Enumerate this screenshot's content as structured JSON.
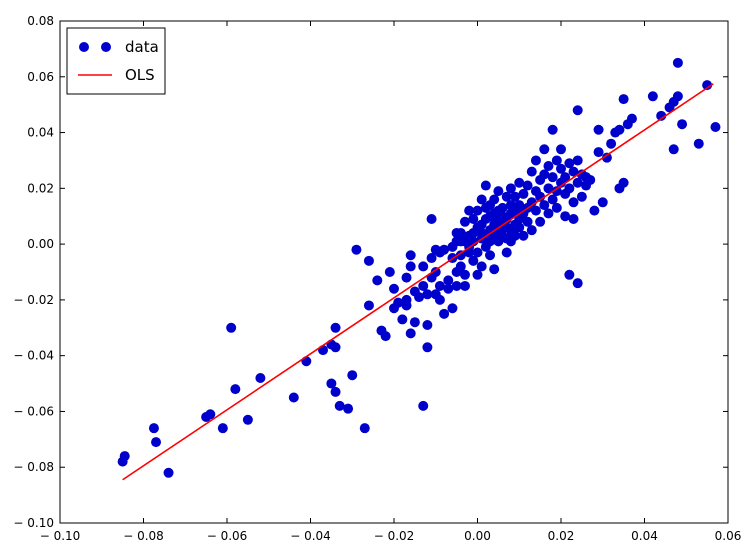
{
  "chart_data": {
    "type": "scatter",
    "title": "",
    "xlabel": "",
    "ylabel": "",
    "xlim": [
      -0.1,
      0.06
    ],
    "ylim": [
      -0.1,
      0.08
    ],
    "x_ticks": [
      "− 0.10",
      "− 0.08",
      "− 0.06",
      "− 0.04",
      "− 0.02",
      "0.00",
      "0.02",
      "0.04",
      "0.06"
    ],
    "y_ticks": [
      "− 0.10",
      "− 0.08",
      "− 0.06",
      "− 0.04",
      "− 0.02",
      "0.00",
      "0.02",
      "0.04",
      "0.06",
      "0.08"
    ],
    "grid": false,
    "legend_position": "top-left",
    "series": [
      {
        "name": "data",
        "kind": "scatter",
        "color": "#0000cc",
        "points": [
          [
            -0.085,
            -0.078
          ],
          [
            -0.0845,
            -0.076
          ],
          [
            -0.0775,
            -0.066
          ],
          [
            -0.077,
            -0.071
          ],
          [
            -0.074,
            -0.082
          ],
          [
            -0.065,
            -0.062
          ],
          [
            -0.064,
            -0.061
          ],
          [
            -0.061,
            -0.066
          ],
          [
            -0.059,
            -0.03
          ],
          [
            -0.058,
            -0.052
          ],
          [
            -0.055,
            -0.063
          ],
          [
            -0.052,
            -0.048
          ],
          [
            -0.044,
            -0.055
          ],
          [
            -0.041,
            -0.042
          ],
          [
            -0.037,
            -0.038
          ],
          [
            -0.035,
            -0.036
          ],
          [
            -0.035,
            -0.05
          ],
          [
            -0.034,
            -0.03
          ],
          [
            -0.034,
            -0.037
          ],
          [
            -0.034,
            -0.053
          ],
          [
            -0.033,
            -0.058
          ],
          [
            -0.031,
            -0.059
          ],
          [
            -0.03,
            -0.047
          ],
          [
            -0.029,
            -0.002
          ],
          [
            -0.027,
            -0.066
          ],
          [
            -0.026,
            -0.022
          ],
          [
            -0.026,
            -0.006
          ],
          [
            -0.024,
            -0.013
          ],
          [
            -0.023,
            -0.031
          ],
          [
            -0.022,
            -0.033
          ],
          [
            -0.021,
            -0.01
          ],
          [
            -0.02,
            -0.016
          ],
          [
            -0.02,
            -0.023
          ],
          [
            -0.019,
            -0.021
          ],
          [
            -0.018,
            -0.027
          ],
          [
            -0.017,
            -0.02
          ],
          [
            -0.017,
            -0.012
          ],
          [
            -0.017,
            -0.022
          ],
          [
            -0.016,
            -0.032
          ],
          [
            -0.016,
            -0.008
          ],
          [
            -0.016,
            -0.004
          ],
          [
            -0.015,
            -0.017
          ],
          [
            -0.015,
            -0.028
          ],
          [
            -0.014,
            -0.019
          ],
          [
            -0.013,
            -0.015
          ],
          [
            -0.013,
            -0.008
          ],
          [
            -0.013,
            -0.058
          ],
          [
            -0.012,
            -0.029
          ],
          [
            -0.012,
            -0.037
          ],
          [
            -0.012,
            -0.018
          ],
          [
            -0.011,
            -0.012
          ],
          [
            -0.011,
            -0.005
          ],
          [
            -0.011,
            0.009
          ],
          [
            -0.01,
            -0.002
          ],
          [
            -0.01,
            -0.01
          ],
          [
            -0.01,
            -0.018
          ],
          [
            -0.009,
            -0.003
          ],
          [
            -0.009,
            -0.015
          ],
          [
            -0.009,
            -0.02
          ],
          [
            -0.008,
            -0.025
          ],
          [
            -0.008,
            -0.002
          ],
          [
            -0.007,
            -0.013
          ],
          [
            -0.007,
            -0.016
          ],
          [
            -0.006,
            -0.023
          ],
          [
            -0.006,
            -0.005
          ],
          [
            -0.006,
            -0.001
          ],
          [
            -0.005,
            0.001
          ],
          [
            -0.005,
            -0.01
          ],
          [
            -0.005,
            0.004
          ],
          [
            -0.005,
            -0.015
          ],
          [
            -0.004,
            0.001
          ],
          [
            -0.004,
            -0.004
          ],
          [
            -0.004,
            0.004
          ],
          [
            -0.004,
            -0.008
          ],
          [
            -0.003,
            0.001
          ],
          [
            -0.003,
            -0.011
          ],
          [
            -0.003,
            0.008
          ],
          [
            -0.003,
            -0.015
          ],
          [
            -0.002,
            -0.001
          ],
          [
            -0.002,
            0.003
          ],
          [
            -0.002,
            0.012
          ],
          [
            -0.002,
            -0.003
          ],
          [
            -0.001,
            0.004
          ],
          [
            -0.001,
            0.009
          ],
          [
            -0.001,
            -0.006
          ],
          [
            -0.001,
            0.001
          ],
          [
            0.0,
            0.006
          ],
          [
            0.0,
            -0.003
          ],
          [
            0.0,
            -0.011
          ],
          [
            0.0,
            0.012
          ],
          [
            0.001,
            0.002
          ],
          [
            0.001,
            0.007
          ],
          [
            0.001,
            -0.008
          ],
          [
            0.001,
            0.004
          ],
          [
            0.001,
            0.016
          ],
          [
            0.002,
            0.003
          ],
          [
            0.002,
            -0.001
          ],
          [
            0.002,
            0.009
          ],
          [
            0.002,
            0.013
          ],
          [
            0.002,
            0.021
          ],
          [
            0.003,
            0.005
          ],
          [
            0.003,
            0.001
          ],
          [
            0.003,
            0.01
          ],
          [
            0.003,
            -0.004
          ],
          [
            0.003,
            0.014
          ],
          [
            0.004,
            0.007
          ],
          [
            0.004,
            0.002
          ],
          [
            0.004,
            0.011
          ],
          [
            0.004,
            0.016
          ],
          [
            0.004,
            -0.009
          ],
          [
            0.005,
            0.004
          ],
          [
            0.005,
            0.009
          ],
          [
            0.005,
            0.012
          ],
          [
            0.005,
            0.001
          ],
          [
            0.005,
            0.019
          ],
          [
            0.006,
            0.006
          ],
          [
            0.006,
            0.003
          ],
          [
            0.006,
            0.01
          ],
          [
            0.006,
            0.013
          ],
          [
            0.006,
            0.008
          ],
          [
            0.007,
            0.009
          ],
          [
            0.007,
            0.002
          ],
          [
            0.007,
            0.017
          ],
          [
            0.007,
            0.006
          ],
          [
            0.007,
            -0.003
          ],
          [
            0.008,
            0.005
          ],
          [
            0.008,
            0.011
          ],
          [
            0.008,
            0.014
          ],
          [
            0.008,
            0.02
          ],
          [
            0.008,
            0.001
          ],
          [
            0.009,
            0.007
          ],
          [
            0.009,
            0.012
          ],
          [
            0.009,
            0.003
          ],
          [
            0.009,
            0.017
          ],
          [
            0.01,
            0.009
          ],
          [
            0.01,
            0.014
          ],
          [
            0.01,
            0.006
          ],
          [
            0.01,
            0.022
          ],
          [
            0.011,
            0.011
          ],
          [
            0.011,
            0.018
          ],
          [
            0.011,
            0.003
          ],
          [
            0.012,
            0.013
          ],
          [
            0.012,
            0.021
          ],
          [
            0.012,
            0.008
          ],
          [
            0.013,
            0.015
          ],
          [
            0.013,
            0.026
          ],
          [
            0.013,
            0.005
          ],
          [
            0.014,
            0.012
          ],
          [
            0.014,
            0.019
          ],
          [
            0.014,
            0.03
          ],
          [
            0.015,
            0.017
          ],
          [
            0.015,
            0.008
          ],
          [
            0.015,
            0.023
          ],
          [
            0.016,
            0.014
          ],
          [
            0.016,
            0.025
          ],
          [
            0.016,
            0.034
          ],
          [
            0.017,
            0.02
          ],
          [
            0.017,
            0.011
          ],
          [
            0.017,
            0.028
          ],
          [
            0.018,
            0.016
          ],
          [
            0.018,
            0.024
          ],
          [
            0.018,
            0.041
          ],
          [
            0.019,
            0.019
          ],
          [
            0.019,
            0.03
          ],
          [
            0.019,
            0.013
          ],
          [
            0.02,
            0.022
          ],
          [
            0.02,
            0.027
          ],
          [
            0.02,
            0.034
          ],
          [
            0.021,
            0.018
          ],
          [
            0.021,
            0.024
          ],
          [
            0.021,
            0.01
          ],
          [
            0.022,
            0.02
          ],
          [
            0.022,
            -0.011
          ],
          [
            0.022,
            0.029
          ],
          [
            0.023,
            0.015
          ],
          [
            0.023,
            0.026
          ],
          [
            0.023,
            0.009
          ],
          [
            0.024,
            0.022
          ],
          [
            0.024,
            0.03
          ],
          [
            0.024,
            -0.014
          ],
          [
            0.024,
            0.048
          ],
          [
            0.025,
            0.017
          ],
          [
            0.025,
            0.025
          ],
          [
            0.026,
            0.021
          ],
          [
            0.026,
            0.024
          ],
          [
            0.027,
            0.023
          ],
          [
            0.028,
            0.012
          ],
          [
            0.029,
            0.033
          ],
          [
            0.029,
            0.041
          ],
          [
            0.03,
            0.015
          ],
          [
            0.031,
            0.031
          ],
          [
            0.032,
            0.036
          ],
          [
            0.033,
            0.04
          ],
          [
            0.034,
            0.02
          ],
          [
            0.034,
            0.041
          ],
          [
            0.035,
            0.022
          ],
          [
            0.035,
            0.052
          ],
          [
            0.036,
            0.043
          ],
          [
            0.037,
            0.045
          ],
          [
            0.042,
            0.053
          ],
          [
            0.044,
            0.046
          ],
          [
            0.046,
            0.049
          ],
          [
            0.047,
            0.034
          ],
          [
            0.047,
            0.051
          ],
          [
            0.048,
            0.053
          ],
          [
            0.048,
            0.065
          ],
          [
            0.049,
            0.043
          ],
          [
            0.053,
            0.036
          ],
          [
            0.055,
            0.057
          ],
          [
            0.057,
            0.042
          ]
        ]
      },
      {
        "name": "OLS",
        "kind": "line",
        "color": "#ff0000",
        "points": [
          [
            -0.085,
            -0.0845
          ],
          [
            0.0565,
            0.0575
          ]
        ]
      }
    ]
  }
}
